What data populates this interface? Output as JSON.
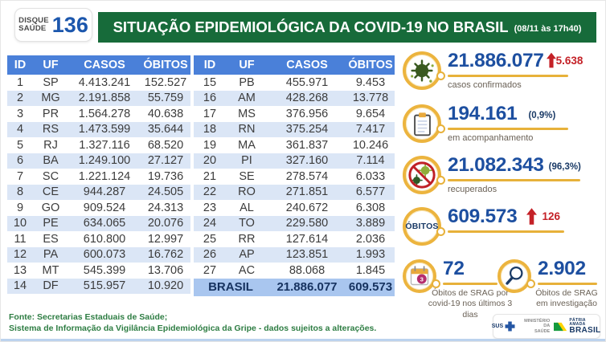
{
  "header": {
    "logo": {
      "line1": "DISQUE",
      "line2": "SAÚDE",
      "number": "136"
    },
    "title": "SITUAÇÃO EPIDEMIOLÓGICA DA COVID-19 NO BRASIL",
    "timestamp": "(08/11 às 17h40)"
  },
  "chart_data": {
    "type": "table",
    "title": "SITUAÇÃO EPIDEMIOLÓGICA DA COVID-19 NO BRASIL (08/11 às 17h40)",
    "columns": [
      "ID",
      "UF",
      "CASOS",
      "ÓBITOS"
    ],
    "rows": [
      [
        "1",
        "SP",
        "4.413.241",
        "152.527"
      ],
      [
        "2",
        "MG",
        "2.191.858",
        "55.759"
      ],
      [
        "3",
        "PR",
        "1.564.278",
        "40.638"
      ],
      [
        "4",
        "RS",
        "1.473.599",
        "35.644"
      ],
      [
        "5",
        "RJ",
        "1.327.116",
        "68.520"
      ],
      [
        "6",
        "BA",
        "1.249.100",
        "27.127"
      ],
      [
        "7",
        "SC",
        "1.221.124",
        "19.736"
      ],
      [
        "8",
        "CE",
        "944.287",
        "24.505"
      ],
      [
        "9",
        "GO",
        "909.524",
        "24.313"
      ],
      [
        "10",
        "PE",
        "634.065",
        "20.076"
      ],
      [
        "11",
        "ES",
        "610.800",
        "12.997"
      ],
      [
        "12",
        "PA",
        "600.073",
        "16.762"
      ],
      [
        "13",
        "MT",
        "545.399",
        "13.706"
      ],
      [
        "14",
        "DF",
        "515.957",
        "10.920"
      ],
      [
        "15",
        "PB",
        "455.971",
        "9.453"
      ],
      [
        "16",
        "AM",
        "428.268",
        "13.778"
      ],
      [
        "17",
        "MS",
        "376.956",
        "9.654"
      ],
      [
        "18",
        "RN",
        "375.254",
        "7.417"
      ],
      [
        "19",
        "MA",
        "361.837",
        "10.246"
      ],
      [
        "20",
        "PI",
        "327.160",
        "7.114"
      ],
      [
        "21",
        "SE",
        "278.574",
        "6.033"
      ],
      [
        "22",
        "RO",
        "271.851",
        "6.577"
      ],
      [
        "23",
        "AL",
        "240.672",
        "6.308"
      ],
      [
        "24",
        "TO",
        "229.580",
        "3.889"
      ],
      [
        "25",
        "RR",
        "127.614",
        "2.036"
      ],
      [
        "26",
        "AP",
        "123.851",
        "1.993"
      ],
      [
        "27",
        "AC",
        "88.068",
        "1.845"
      ]
    ],
    "total": [
      "BRASIL",
      "21.886.077",
      "609.573"
    ],
    "indicators": [
      {
        "icon": "virus-icon",
        "value": "21.886.077",
        "delta": "5.638",
        "trend": "up",
        "label": "casos confirmados"
      },
      {
        "icon": "clipboard-icon",
        "value": "194.161",
        "share": "(0,9%)",
        "label": "em acompanhamento"
      },
      {
        "icon": "no-virus-icon",
        "value": "21.082.343",
        "share": "(96,3%)",
        "label": "recuperados"
      },
      {
        "icon": "obitos-badge",
        "icon_text": "ÓBITOS",
        "value": "609.573",
        "delta": "126",
        "trend": "up",
        "label": ""
      },
      {
        "icon": "calendar-3-icon",
        "value": "72",
        "label": "Óbitos de SRAG por covid-19 nos últimos 3 dias"
      },
      {
        "icon": "magnifier-icon",
        "value": "2.902",
        "label": "Óbitos de SRAG em investigação"
      }
    ],
    "legend_position": "none",
    "grid": false
  },
  "footer": {
    "source_line1": "Fonte: Secretarias Estaduais de Saúde;",
    "source_line2": "Sistema de Informação da Vigilância Epidemiológica da Gripe - dados sujeitos a alterações.",
    "logos": {
      "sus": "SUS",
      "ministry_line1": "MINISTÉRIO DA",
      "ministry_line2": "SAÚDE",
      "brand_top": "PÁTRIA AMADA",
      "brand_main": "BRASIL"
    }
  },
  "colors": {
    "banner_green": "#176b3a",
    "table_header_blue": "#4a80d9",
    "stripe_blue": "#dbe6f6",
    "total_row_blue": "#a9c6ef",
    "number_blue": "#1d4fa0",
    "navy": "#1a3a66",
    "alert_red": "#c42127",
    "gold": "#e7b13a",
    "footer_green": "#2e7d43"
  }
}
